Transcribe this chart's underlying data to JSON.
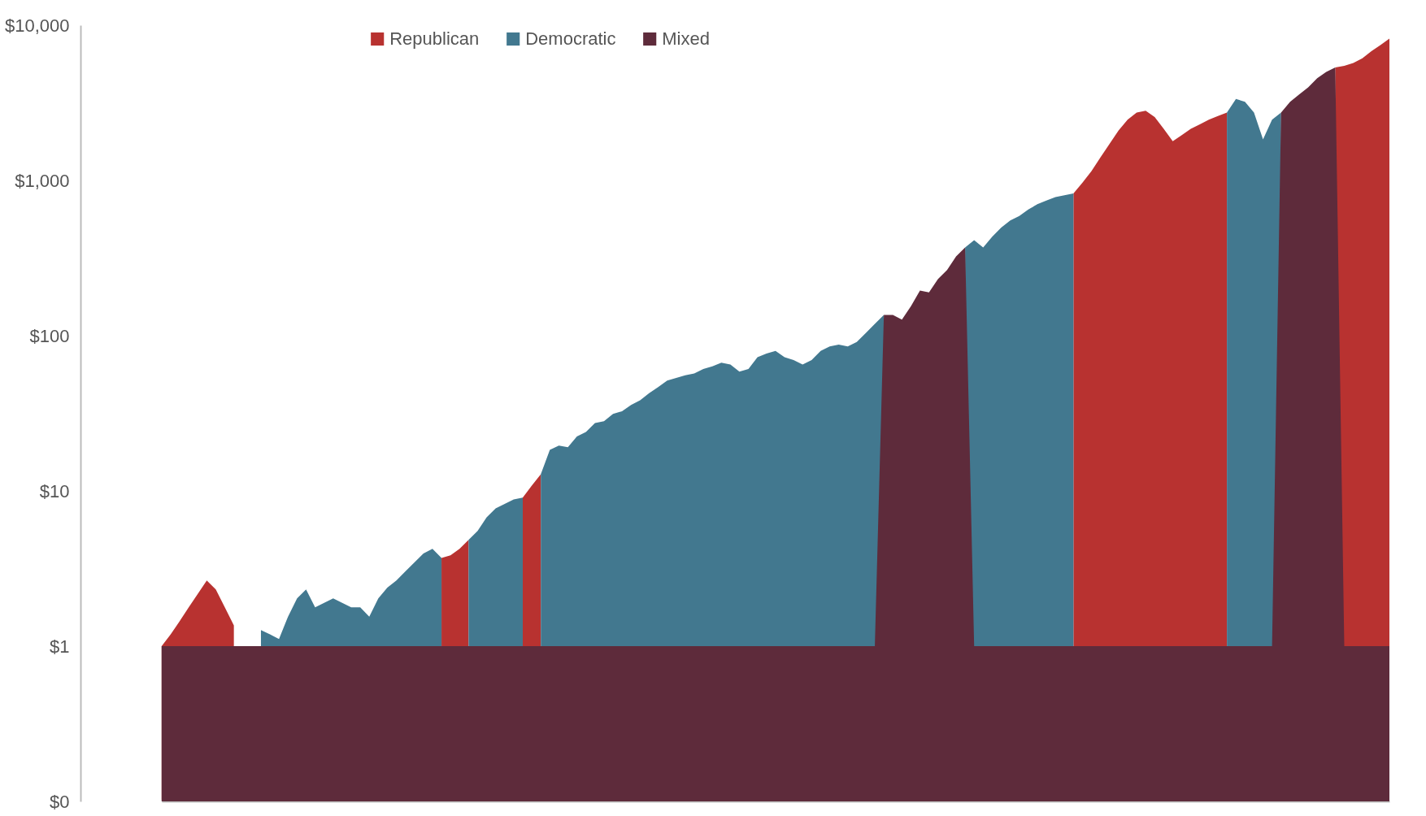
{
  "chart_data": {
    "type": "area",
    "log": "y",
    "ylim": [
      0.1,
      10000
    ],
    "yticks": [
      {
        "value": 0.1,
        "label": "$0"
      },
      {
        "value": 1,
        "label": "$1"
      },
      {
        "value": 10,
        "label": "$10"
      },
      {
        "value": 100,
        "label": "$100"
      },
      {
        "value": 1000,
        "label": "$1,000"
      },
      {
        "value": 10000,
        "label": "$10,000"
      }
    ],
    "tick_labels": "y",
    "legend": "top",
    "grid": false,
    "categories": [
      null,
      null,
      null,
      null,
      null,
      null,
      null,
      null,
      null,
      null,
      null,
      null,
      null,
      null,
      null,
      null,
      null,
      null,
      null,
      null,
      null,
      null,
      null,
      null,
      null,
      null,
      null,
      null,
      null,
      null,
      null,
      null,
      null,
      null,
      null,
      null,
      null,
      null,
      null,
      null,
      null,
      null,
      null,
      null,
      null,
      null,
      null,
      null,
      null,
      null,
      null,
      null,
      null,
      null,
      null,
      null,
      null,
      null,
      null,
      null,
      null,
      null,
      null,
      null,
      null,
      null,
      null,
      null,
      null,
      null,
      null,
      null,
      null,
      null,
      null,
      null,
      null,
      null,
      null,
      null,
      null,
      null,
      null,
      null,
      null,
      null,
      null,
      null,
      null,
      null,
      null,
      null,
      null,
      null,
      null,
      null,
      null,
      null,
      null,
      null,
      null,
      null,
      null,
      null,
      null,
      null,
      null,
      null,
      null,
      null,
      null,
      null,
      null,
      null,
      null,
      null,
      null,
      null,
      null,
      null,
      null,
      null,
      null,
      null,
      null,
      null,
      null,
      null,
      null,
      null,
      null,
      null,
      null,
      null,
      null,
      null,
      null
    ],
    "series": [
      {
        "name": "Republican",
        "color": "#b83230",
        "values": [
          1,
          1.19,
          1.45,
          1.78,
          2.17,
          2.65,
          2.32,
          1.78,
          1.36,
          null,
          null,
          null,
          null,
          null,
          null,
          null,
          null,
          null,
          null,
          null,
          null,
          null,
          null,
          null,
          null,
          null,
          null,
          null,
          null,
          null,
          null,
          3.7,
          3.85,
          4.23,
          4.83,
          null,
          null,
          null,
          null,
          null,
          9.05,
          10.8,
          12.8,
          null,
          null,
          null,
          null,
          null,
          null,
          null,
          null,
          null,
          null,
          null,
          null,
          null,
          null,
          null,
          null,
          null,
          null,
          null,
          null,
          null,
          null,
          null,
          null,
          null,
          null,
          null,
          null,
          null,
          null,
          null,
          null,
          null,
          null,
          null,
          null,
          null,
          null,
          null,
          null,
          null,
          null,
          null,
          null,
          null,
          null,
          null,
          null,
          null,
          null,
          null,
          null,
          null,
          null,
          null,
          null,
          null,
          null,
          824,
          968,
          1150,
          1410,
          1720,
          2100,
          2460,
          2740,
          2810,
          2560,
          2150,
          1790,
          1960,
          2150,
          2300,
          2460,
          2600,
          2740,
          null,
          null,
          null,
          null,
          null,
          null,
          null,
          null,
          null,
          null,
          null,
          5340,
          5480,
          5710,
          6110,
          6790,
          7450,
          8190
        ]
      },
      {
        "name": "Democratic",
        "color": "#42788f",
        "values": [
          null,
          null,
          null,
          null,
          null,
          null,
          null,
          null,
          null,
          null,
          null,
          1.27,
          1.19,
          1.11,
          1.55,
          2.03,
          2.32,
          1.78,
          1.9,
          2.03,
          1.9,
          1.78,
          1.78,
          1.55,
          2.03,
          2.38,
          2.65,
          3.03,
          3.46,
          3.95,
          4.23,
          3.7,
          null,
          null,
          4.83,
          5.52,
          6.75,
          7.71,
          8.24,
          8.81,
          9.05,
          null,
          12.8,
          18.4,
          19.6,
          19.1,
          22.4,
          24,
          27.4,
          28.1,
          31.3,
          32.6,
          35.8,
          38.3,
          42.6,
          46.7,
          51.3,
          53.4,
          55.6,
          57.1,
          61,
          63.5,
          67,
          65.2,
          58.7,
          61,
          72.6,
          76.6,
          79.7,
          72.6,
          69.7,
          65.2,
          69.7,
          79.7,
          85.2,
          87.5,
          85.2,
          91.1,
          104,
          119,
          136,
          null,
          null,
          null,
          null,
          null,
          null,
          null,
          null,
          370,
          412,
          370,
          434,
          497,
          552,
          590,
          649,
          702,
          741,
          781,
          802,
          824,
          null,
          null,
          null,
          null,
          null,
          null,
          null,
          null,
          null,
          null,
          null,
          null,
          null,
          null,
          null,
          null,
          2740,
          3350,
          3210,
          2740,
          1840,
          2460,
          2740,
          null,
          null,
          null,
          null,
          null,
          null,
          null,
          null,
          null,
          null,
          null,
          null
        ]
      },
      {
        "name": "Mixed",
        "color": "#5e2b3b",
        "values": [
          1,
          1,
          1,
          1,
          1,
          1,
          1,
          1,
          1,
          1,
          1,
          1,
          1,
          1,
          1,
          1,
          1,
          1,
          1,
          1,
          1,
          1,
          1,
          1,
          1,
          1,
          1,
          1,
          1,
          1,
          1,
          1,
          1,
          1,
          1,
          1,
          1,
          1,
          1,
          1,
          1,
          1,
          1,
          1,
          1,
          1,
          1,
          1,
          1,
          1,
          1,
          1,
          1,
          1,
          1,
          1,
          1,
          1,
          1,
          1,
          1,
          1,
          1,
          1,
          1,
          1,
          1,
          1,
          1,
          1,
          1,
          1,
          1,
          1,
          1,
          1,
          1,
          1,
          1,
          1,
          136,
          136,
          127,
          155,
          195,
          190,
          232,
          265,
          324,
          370,
          1,
          1,
          1,
          1,
          1,
          1,
          1,
          1,
          1,
          1,
          1,
          1,
          1,
          1,
          1,
          1,
          1,
          1,
          1,
          1,
          1,
          1,
          1,
          1,
          1,
          1,
          1,
          1,
          1,
          1,
          1,
          1,
          1,
          1,
          2740,
          3210,
          3580,
          3980,
          4550,
          5000,
          5340,
          1,
          1,
          1,
          1,
          1,
          1
        ]
      }
    ]
  }
}
